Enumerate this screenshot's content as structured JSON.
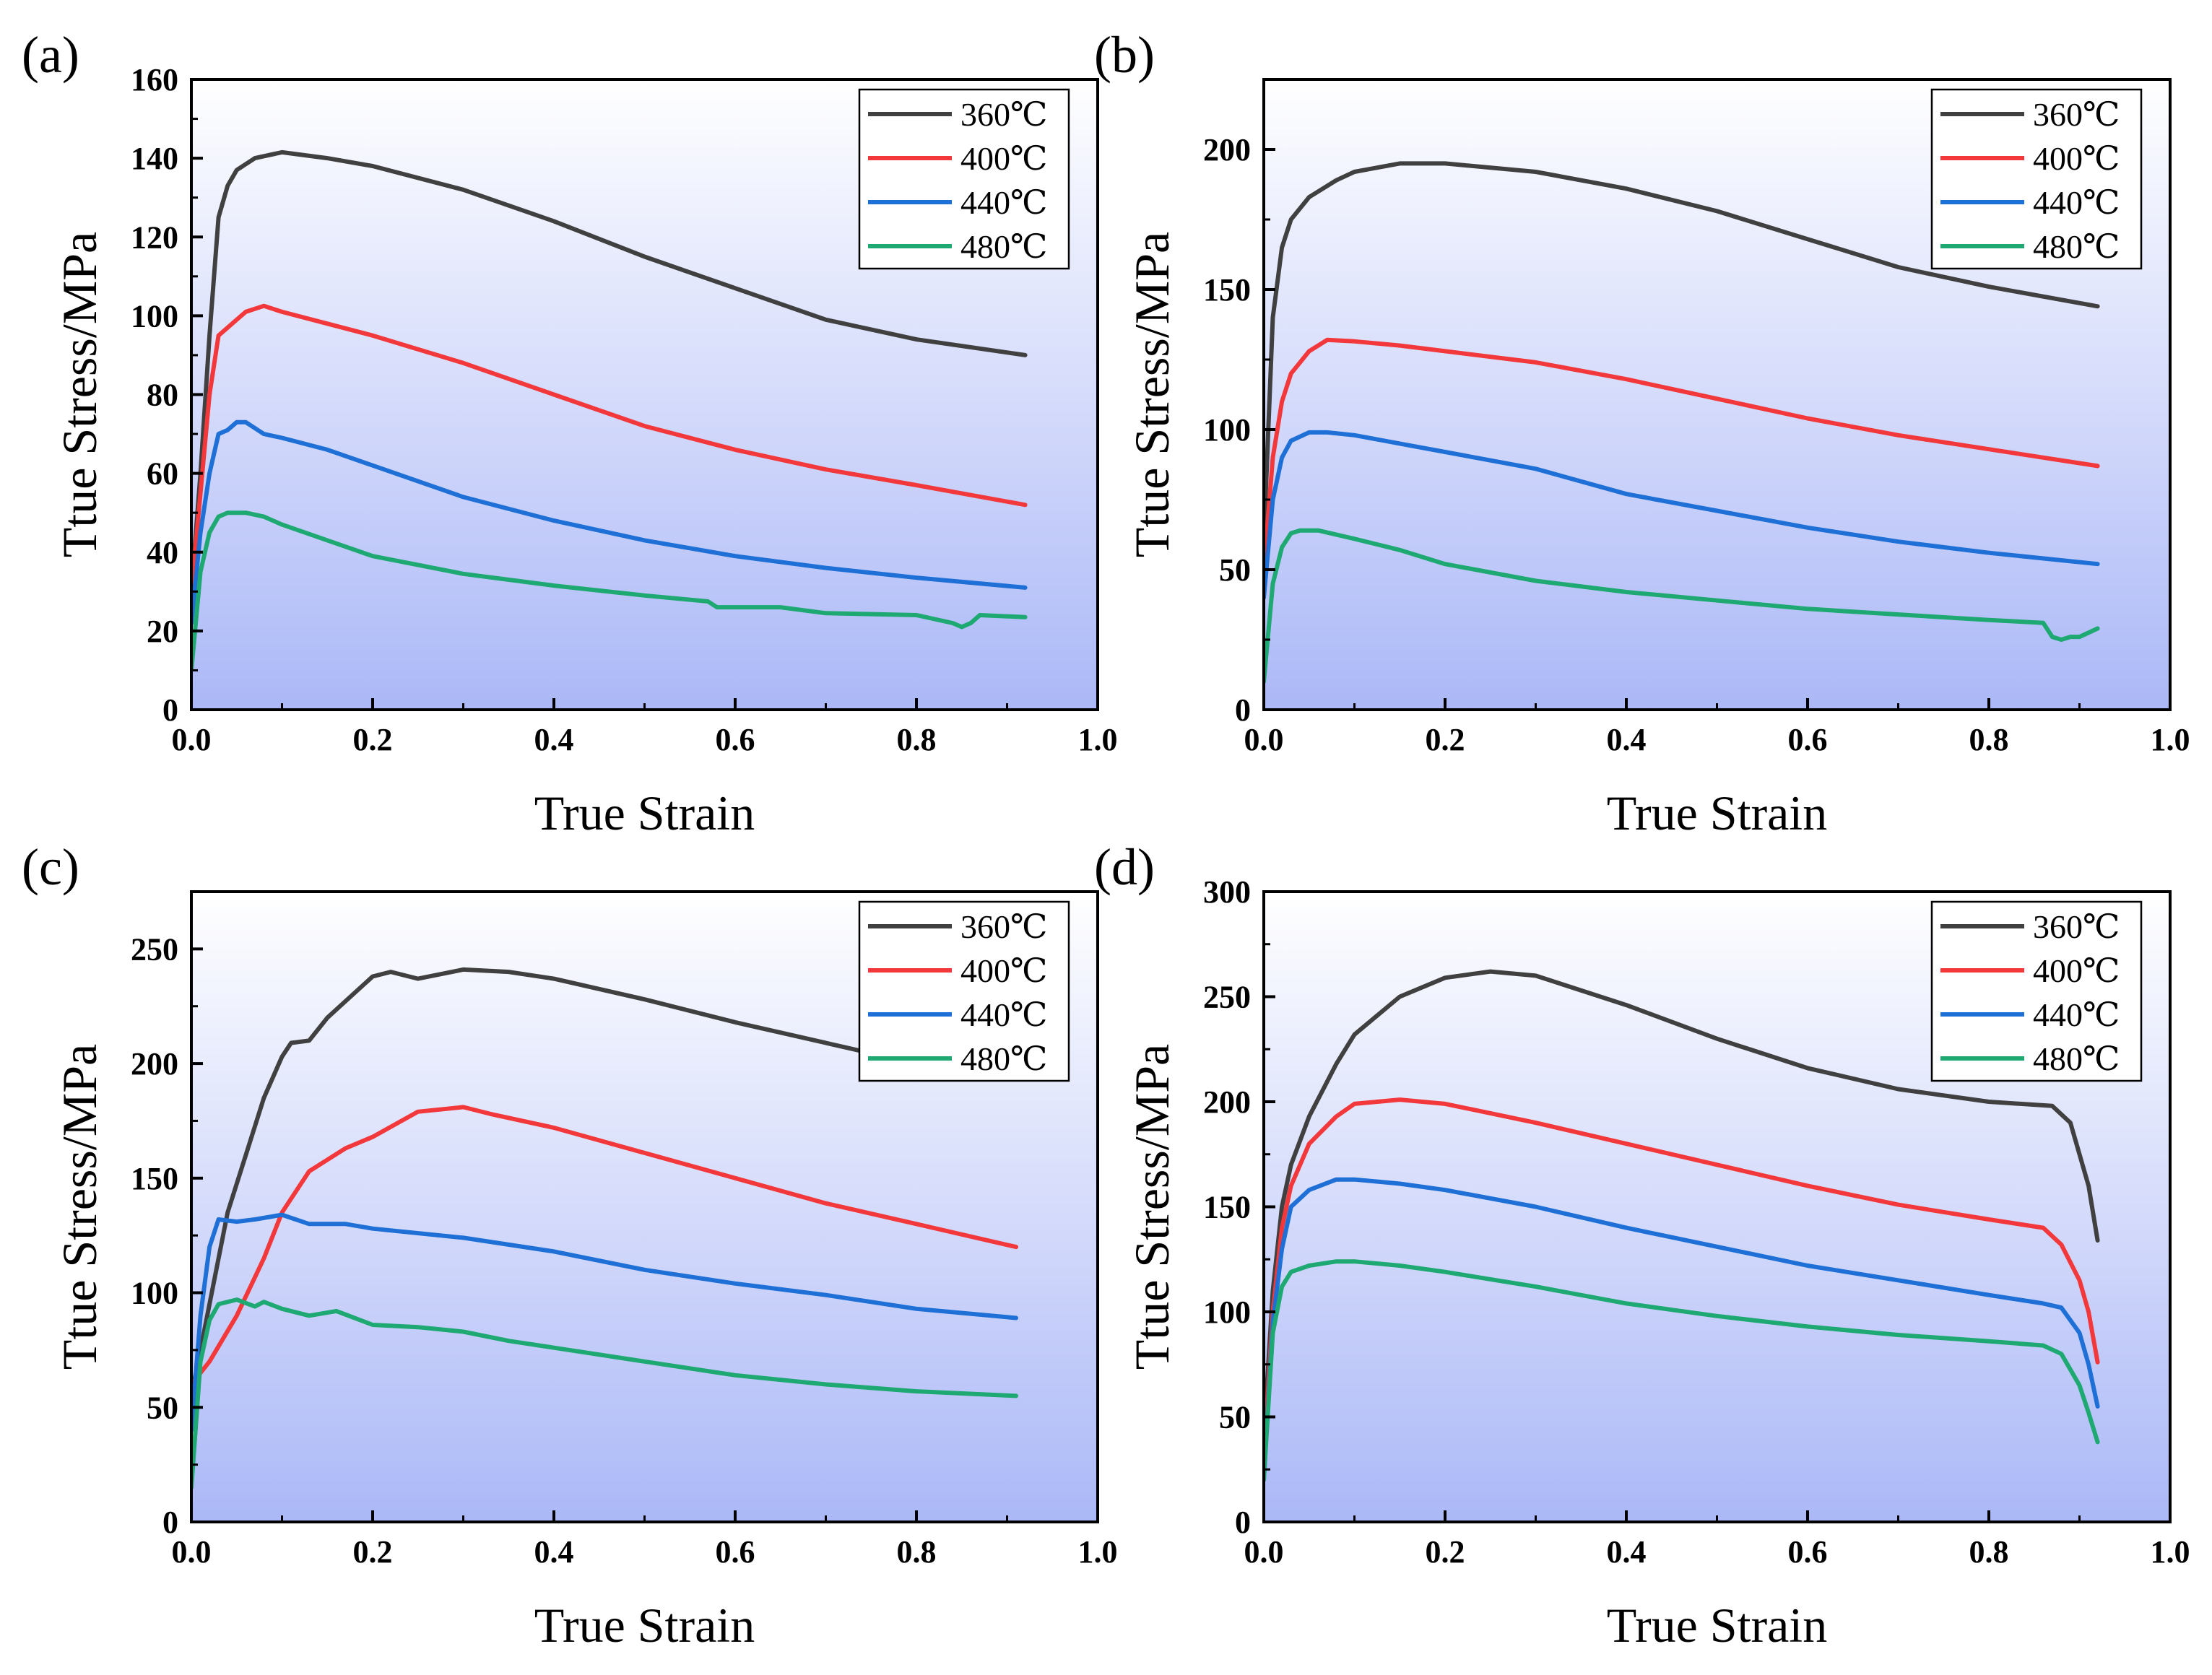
{
  "colors": {
    "s360": "#404040",
    "s400": "#f2383b",
    "s440": "#1e6fd6",
    "s480": "#1ea872",
    "bg_top": "#ffffff",
    "bg_bottom": "#abb8f7"
  },
  "chart_data": [
    {
      "type": "line",
      "panel": "(a)",
      "xlabel": "True Strain",
      "ylabel": "Ttue Stress/MPa",
      "xlim": [
        0,
        1.0
      ],
      "ylim": [
        0,
        160
      ],
      "xticks": [
        "0.0",
        "0.2",
        "0.4",
        "0.6",
        "0.8",
        "1.0"
      ],
      "yticks": [
        "0",
        "20",
        "40",
        "60",
        "80",
        "100",
        "120",
        "140",
        "160"
      ],
      "legend": "top-right",
      "series": [
        {
          "name": "360℃",
          "x": [
            0,
            0.01,
            0.02,
            0.03,
            0.04,
            0.05,
            0.07,
            0.1,
            0.15,
            0.2,
            0.3,
            0.4,
            0.5,
            0.6,
            0.7,
            0.8,
            0.92
          ],
          "y": [
            30,
            60,
            95,
            125,
            133,
            137,
            140,
            141.5,
            140,
            138,
            132,
            124,
            115,
            107,
            99,
            94,
            90
          ]
        },
        {
          "name": "400℃",
          "x": [
            0,
            0.01,
            0.02,
            0.03,
            0.04,
            0.06,
            0.08,
            0.1,
            0.15,
            0.2,
            0.3,
            0.4,
            0.5,
            0.6,
            0.7,
            0.8,
            0.92
          ],
          "y": [
            30,
            55,
            80,
            95,
            97,
            101,
            102.5,
            101,
            98,
            95,
            88,
            80,
            72,
            66,
            61,
            57,
            52
          ]
        },
        {
          "name": "440℃",
          "x": [
            0,
            0.01,
            0.02,
            0.03,
            0.04,
            0.05,
            0.06,
            0.08,
            0.1,
            0.15,
            0.2,
            0.3,
            0.4,
            0.5,
            0.6,
            0.7,
            0.8,
            0.92
          ],
          "y": [
            22,
            45,
            60,
            70,
            71,
            73,
            73,
            70,
            69,
            66,
            62,
            54,
            48,
            43,
            39,
            36,
            33.5,
            31
          ]
        },
        {
          "name": "480℃",
          "x": [
            0,
            0.01,
            0.02,
            0.03,
            0.04,
            0.06,
            0.08,
            0.1,
            0.15,
            0.2,
            0.3,
            0.4,
            0.5,
            0.57,
            0.58,
            0.65,
            0.7,
            0.8,
            0.84,
            0.85,
            0.86,
            0.87,
            0.92
          ],
          "y": [
            10,
            35,
            45,
            49,
            50,
            50,
            49,
            47,
            43,
            39,
            34.5,
            31.5,
            29,
            27.5,
            26,
            26,
            24.5,
            24,
            22,
            21,
            22,
            24,
            23.5
          ]
        }
      ]
    },
    {
      "type": "line",
      "panel": "(b)",
      "xlabel": "True Strain",
      "ylabel": "Ttue Stress/MPa",
      "xlim": [
        0,
        1.0
      ],
      "ylim": [
        0,
        225
      ],
      "xticks": [
        "0.0",
        "0.2",
        "0.4",
        "0.6",
        "0.8",
        "1.0"
      ],
      "yticks": [
        "0",
        "50",
        "100",
        "150",
        "200"
      ],
      "legend": "top-right",
      "series": [
        {
          "name": "360℃",
          "x": [
            0,
            0.01,
            0.02,
            0.03,
            0.05,
            0.08,
            0.1,
            0.15,
            0.2,
            0.3,
            0.4,
            0.5,
            0.6,
            0.7,
            0.8,
            0.92
          ],
          "y": [
            60,
            140,
            165,
            175,
            183,
            189,
            192,
            195,
            195,
            192,
            186,
            178,
            168,
            158,
            151,
            144
          ]
        },
        {
          "name": "400℃",
          "x": [
            0,
            0.01,
            0.02,
            0.03,
            0.05,
            0.07,
            0.1,
            0.15,
            0.2,
            0.3,
            0.4,
            0.5,
            0.6,
            0.7,
            0.8,
            0.92
          ],
          "y": [
            50,
            90,
            110,
            120,
            128,
            132,
            131.5,
            130,
            128,
            124,
            118,
            111,
            104,
            98,
            93,
            87
          ]
        },
        {
          "name": "440℃",
          "x": [
            0,
            0.01,
            0.02,
            0.03,
            0.05,
            0.07,
            0.1,
            0.15,
            0.2,
            0.3,
            0.4,
            0.5,
            0.6,
            0.7,
            0.8,
            0.92
          ],
          "y": [
            40,
            75,
            90,
            96,
            99,
            99,
            98,
            95,
            92,
            86,
            77,
            71,
            65,
            60,
            56,
            52
          ]
        },
        {
          "name": "480℃",
          "x": [
            0,
            0.01,
            0.02,
            0.03,
            0.04,
            0.06,
            0.1,
            0.15,
            0.2,
            0.3,
            0.4,
            0.5,
            0.6,
            0.7,
            0.8,
            0.86,
            0.87,
            0.88,
            0.89,
            0.9,
            0.92
          ],
          "y": [
            10,
            45,
            58,
            63,
            64,
            64,
            61,
            57,
            52,
            46,
            42,
            39,
            36,
            34,
            32,
            31,
            26,
            25,
            26,
            26,
            29
          ]
        }
      ]
    },
    {
      "type": "line",
      "panel": "(c)",
      "xlabel": "True Strain",
      "ylabel": "Ttue Stress/MPa",
      "xlim": [
        0,
        1.0
      ],
      "ylim": [
        0,
        275
      ],
      "xticks": [
        "0.0",
        "0.2",
        "0.4",
        "0.6",
        "0.8",
        "1.0"
      ],
      "yticks": [
        "0",
        "50",
        "100",
        "150",
        "200",
        "250"
      ],
      "legend": "top-right",
      "series": [
        {
          "name": "360℃",
          "x": [
            0,
            0.02,
            0.04,
            0.06,
            0.08,
            0.1,
            0.11,
            0.13,
            0.15,
            0.2,
            0.22,
            0.25,
            0.3,
            0.35,
            0.4,
            0.5,
            0.6,
            0.7,
            0.8,
            0.82
          ],
          "y": [
            55,
            95,
            135,
            160,
            185,
            203,
            209,
            210,
            220,
            238,
            240,
            237,
            241,
            240,
            237,
            228,
            218,
            209,
            200,
            198
          ]
        },
        {
          "name": "400℃",
          "x": [
            0,
            0.02,
            0.05,
            0.08,
            0.1,
            0.13,
            0.17,
            0.2,
            0.25,
            0.3,
            0.33,
            0.4,
            0.5,
            0.6,
            0.7,
            0.8,
            0.91
          ],
          "y": [
            60,
            70,
            90,
            115,
            135,
            153,
            163,
            168,
            179,
            181,
            178,
            172,
            161,
            150,
            139,
            130,
            120
          ]
        },
        {
          "name": "440℃",
          "x": [
            0,
            0.01,
            0.02,
            0.03,
            0.05,
            0.07,
            0.1,
            0.13,
            0.17,
            0.2,
            0.3,
            0.4,
            0.5,
            0.6,
            0.7,
            0.8,
            0.91
          ],
          "y": [
            40,
            90,
            120,
            132,
            131,
            132,
            134,
            130,
            130,
            128,
            124,
            118,
            110,
            104,
            99,
            93,
            89
          ]
        },
        {
          "name": "480℃",
          "x": [
            0,
            0.01,
            0.02,
            0.03,
            0.05,
            0.07,
            0.08,
            0.1,
            0.13,
            0.16,
            0.2,
            0.25,
            0.3,
            0.35,
            0.4,
            0.5,
            0.6,
            0.7,
            0.8,
            0.91
          ],
          "y": [
            15,
            70,
            88,
            95,
            97,
            94,
            96,
            93,
            90,
            92,
            86,
            85,
            83,
            79,
            76,
            70,
            64,
            60,
            57,
            55
          ]
        }
      ]
    },
    {
      "type": "line",
      "panel": "(d)",
      "xlabel": "True Strain",
      "ylabel": "Ttue Stress/MPa",
      "xlim": [
        0,
        1.0
      ],
      "ylim": [
        0,
        300
      ],
      "xticks": [
        "0.0",
        "0.2",
        "0.4",
        "0.6",
        "0.8",
        "1.0"
      ],
      "yticks": [
        "0",
        "50",
        "100",
        "150",
        "200",
        "250",
        "300"
      ],
      "legend": "top-right",
      "series": [
        {
          "name": "360℃",
          "x": [
            0,
            0.01,
            0.02,
            0.03,
            0.05,
            0.08,
            0.1,
            0.15,
            0.2,
            0.25,
            0.3,
            0.4,
            0.5,
            0.6,
            0.7,
            0.8,
            0.87,
            0.89,
            0.91,
            0.92
          ],
          "y": [
            40,
            110,
            150,
            170,
            193,
            218,
            232,
            250,
            259,
            262,
            260,
            246,
            230,
            216,
            206,
            200,
            198,
            190,
            160,
            134
          ]
        },
        {
          "name": "400℃",
          "x": [
            0,
            0.01,
            0.02,
            0.03,
            0.05,
            0.08,
            0.1,
            0.15,
            0.2,
            0.3,
            0.4,
            0.5,
            0.6,
            0.7,
            0.8,
            0.86,
            0.88,
            0.9,
            0.91,
            0.92
          ],
          "y": [
            30,
            100,
            140,
            160,
            180,
            193,
            199,
            201,
            199,
            190,
            180,
            170,
            160,
            151,
            144,
            140,
            132,
            115,
            100,
            76
          ]
        },
        {
          "name": "440℃",
          "x": [
            0,
            0.01,
            0.02,
            0.03,
            0.05,
            0.08,
            0.1,
            0.15,
            0.2,
            0.3,
            0.4,
            0.5,
            0.6,
            0.7,
            0.8,
            0.86,
            0.88,
            0.9,
            0.91,
            0.92
          ],
          "y": [
            20,
            95,
            130,
            150,
            158,
            163,
            163,
            161,
            158,
            150,
            140,
            131,
            122,
            115,
            108,
            104,
            102,
            90,
            75,
            55
          ]
        },
        {
          "name": "480℃",
          "x": [
            0,
            0.01,
            0.02,
            0.03,
            0.05,
            0.08,
            0.1,
            0.15,
            0.2,
            0.3,
            0.4,
            0.5,
            0.6,
            0.7,
            0.8,
            0.86,
            0.88,
            0.9,
            0.91,
            0.92
          ],
          "y": [
            20,
            90,
            112,
            119,
            122,
            124,
            124,
            122,
            119,
            112,
            104,
            98,
            93,
            89,
            86,
            84,
            80,
            65,
            52,
            38
          ]
        }
      ]
    }
  ]
}
